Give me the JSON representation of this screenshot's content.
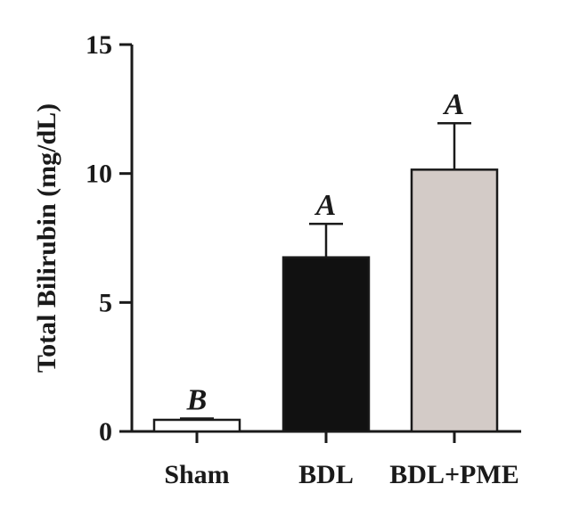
{
  "chart_data": {
    "type": "bar",
    "title": "",
    "xlabel": "",
    "ylabel": "Total Bilirubin (mg/dL)",
    "ylim": [
      0,
      15
    ],
    "yticks": [
      0,
      5,
      10,
      15
    ],
    "grid": false,
    "categories": [
      "Sham",
      "BDL",
      "BDL+PME"
    ],
    "values": [
      0.45,
      6.75,
      10.15
    ],
    "errors": [
      0.05,
      1.3,
      1.8
    ],
    "significance": [
      "B",
      "A",
      "A"
    ],
    "colors": [
      "#ffffff",
      "#111111",
      "#d3cbc7"
    ]
  }
}
